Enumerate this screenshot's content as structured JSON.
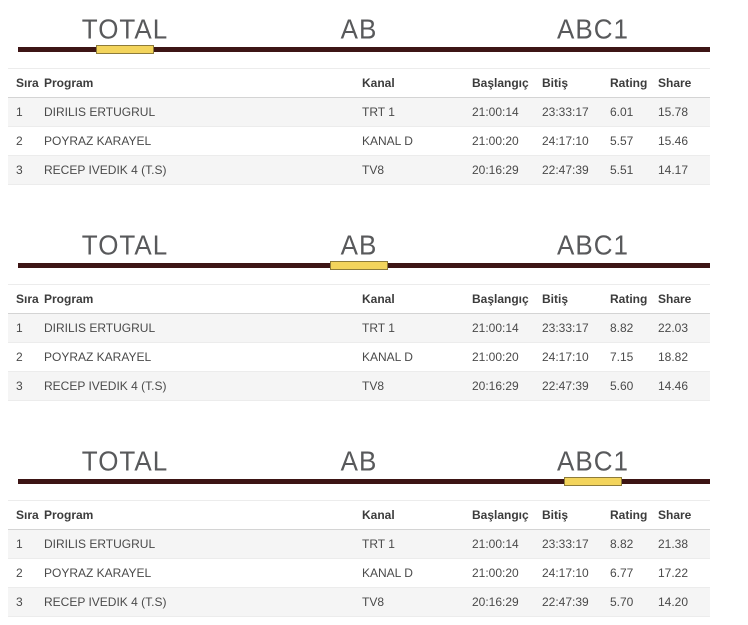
{
  "tabs": [
    {
      "label": "TOTAL"
    },
    {
      "label": "AB"
    },
    {
      "label": "ABC1"
    }
  ],
  "table": {
    "headers": [
      "Sıra",
      "Program",
      "Kanal",
      "Başlangıç",
      "Bitiş",
      "Rating",
      "Share"
    ]
  },
  "panels": [
    {
      "active_tab": "TOTAL",
      "active_index": 0,
      "rows": [
        [
          "1",
          "DIRILIS ERTUGRUL",
          "TRT 1",
          "21:00:14",
          "23:33:17",
          "6.01",
          "15.78"
        ],
        [
          "2",
          "POYRAZ KARAYEL",
          "KANAL D",
          "21:00:20",
          "24:17:10",
          "5.57",
          "15.46"
        ],
        [
          "3",
          "RECEP IVEDIK 4 (T.S)",
          "TV8",
          "20:16:29",
          "22:47:39",
          "5.51",
          "14.17"
        ]
      ]
    },
    {
      "active_tab": "AB",
      "active_index": 1,
      "rows": [
        [
          "1",
          "DIRILIS ERTUGRUL",
          "TRT 1",
          "21:00:14",
          "23:33:17",
          "8.82",
          "22.03"
        ],
        [
          "2",
          "POYRAZ KARAYEL",
          "KANAL D",
          "21:00:20",
          "24:17:10",
          "7.15",
          "18.82"
        ],
        [
          "3",
          "RECEP IVEDIK 4 (T.S)",
          "TV8",
          "20:16:29",
          "22:47:39",
          "5.60",
          "14.46"
        ]
      ]
    },
    {
      "active_tab": "ABC1",
      "active_index": 2,
      "rows": [
        [
          "1",
          "DIRILIS ERTUGRUL",
          "TRT 1",
          "21:00:14",
          "23:33:17",
          "8.82",
          "21.38"
        ],
        [
          "2",
          "POYRAZ KARAYEL",
          "KANAL D",
          "21:00:20",
          "24:17:10",
          "6.77",
          "17.22"
        ],
        [
          "3",
          "RECEP IVEDIK 4 (T.S)",
          "TV8",
          "20:16:29",
          "22:47:39",
          "5.70",
          "14.20"
        ]
      ]
    }
  ],
  "colors": {
    "divider": "#3d1515",
    "marker": "#f3d45c",
    "marker_border": "#8d7b3a",
    "tab_text": "#58595b",
    "stripe": "#f5f5f5"
  }
}
